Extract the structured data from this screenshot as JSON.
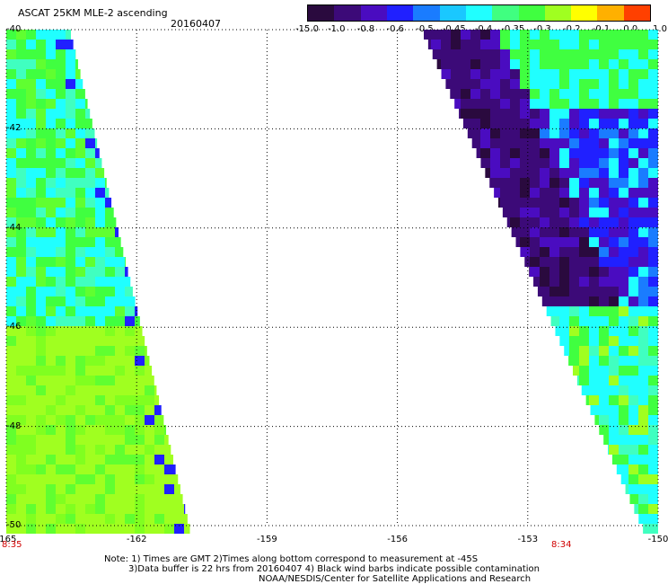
{
  "header": {
    "title": "ASCAT 25KM MLE-2 ascending",
    "date": "20160407"
  },
  "colorbar": {
    "labels": [
      "-15.0",
      "-1.0",
      "-0.8",
      "-0.6",
      "-0.5",
      "-0.45",
      "-0.4",
      "-0.35",
      "-0.3",
      "-0.2",
      "-0.1",
      "0.0",
      "1.0"
    ],
    "colors": [
      "#2a0a3e",
      "#3c0a78",
      "#4a0cc0",
      "#2020ff",
      "#1a7cff",
      "#1ac8ff",
      "#20ffff",
      "#40ff80",
      "#40ff40",
      "#a0ff20",
      "#ffff00",
      "#ffb000",
      "#ff4000"
    ]
  },
  "axes": {
    "y_ticks": [
      "-40",
      "-42",
      "-44",
      "-46",
      "-48",
      "-50"
    ],
    "x_ticks": [
      "-165",
      "-162",
      "-159",
      "-156",
      "-153",
      "-150"
    ],
    "x_range": [
      -165,
      -150
    ],
    "y_range": [
      -40,
      -50
    ]
  },
  "swath_times": {
    "left": "8:35",
    "right": "8:34"
  },
  "notes": {
    "line1": "Note: 1) Times are GMT 2)Times along bottom correspond to measurement at -45S",
    "line2": "3)Data buffer is 22 hrs from 20160407 4) Black wind barbs indicate possible contamination",
    "line3": "NOAA/NESDIS/Center for Satellite Applications and Research"
  }
}
